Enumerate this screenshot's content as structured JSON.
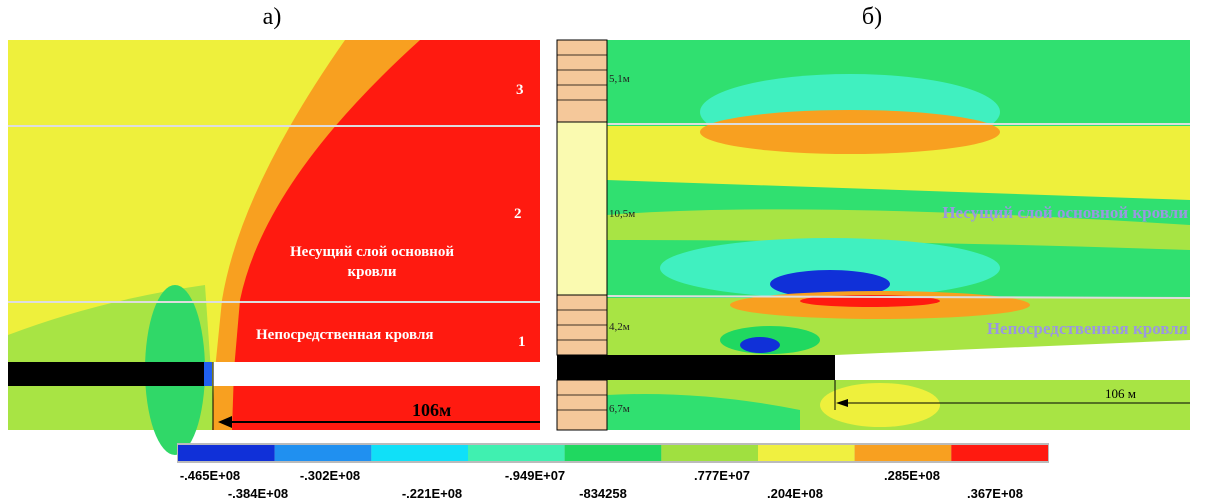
{
  "panel_a": {
    "label": "а)",
    "layer_numbers": [
      "3",
      "2",
      "1"
    ],
    "main_roof_lines": [
      "Несущий слой основной",
      "кровли"
    ],
    "immediate_roof": "Непосредственная кровля",
    "distance": "106м"
  },
  "panel_b": {
    "label": "б)",
    "thicknesses": [
      "5,1м",
      "10,5м",
      "4,2м",
      "6,7м"
    ],
    "main_roof": "Несущий слой основной кровли",
    "immediate_roof": "Непосредственная кровля",
    "distance": "106 м"
  },
  "colorbar": {
    "colors": [
      "#1030d8",
      "#2090f0",
      "#10e0f8",
      "#40f0b0",
      "#20d860",
      "#a0e040",
      "#f0f040",
      "#f8a020",
      "#ff1a10"
    ],
    "labels": [
      "-.465E+08",
      "-.384E+08",
      "-.302E+08",
      "-.221E+08",
      "-.949E+07",
      "-834258",
      ".777E+07",
      ".204E+08",
      ".285E+08",
      ".367E+08"
    ]
  }
}
